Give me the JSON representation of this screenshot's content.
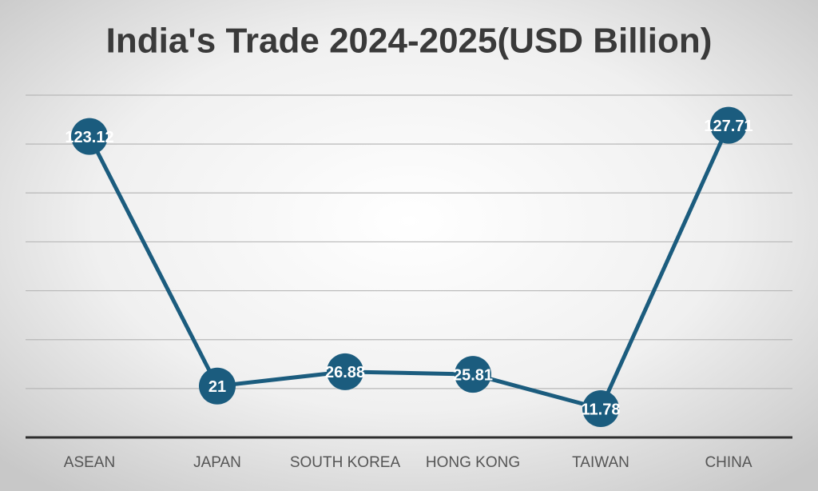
{
  "chart_data": {
    "type": "line",
    "title": "India's Trade 2024-2025(USD Billion)",
    "categories": [
      "ASEAN",
      "JAPAN",
      "SOUTH KOREA",
      "HONG KONG",
      "TAIWAN",
      "CHINA"
    ],
    "values": [
      123.12,
      21,
      26.88,
      25.81,
      11.78,
      127.71
    ],
    "color": "#1b5c7e",
    "ylim": [
      0,
      140
    ],
    "yticks": [
      0,
      20,
      40,
      60,
      80,
      100,
      120,
      140
    ],
    "grid": true
  }
}
